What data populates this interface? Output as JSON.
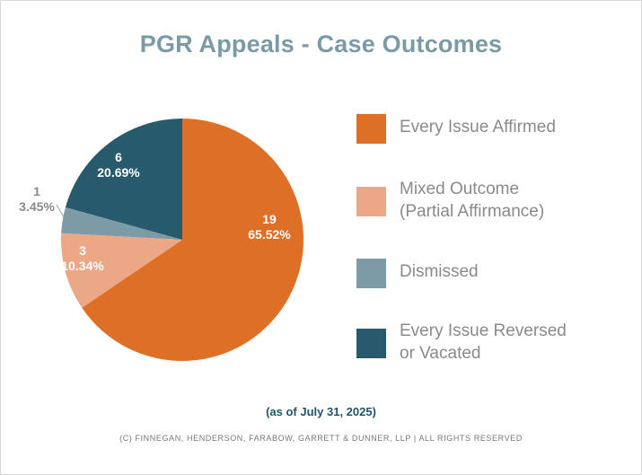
{
  "chart_data": {
    "type": "pie",
    "title": "PGR Appeals - Case Outcomes",
    "slices": [
      {
        "name": "Every Issue Affirmed",
        "value": 19,
        "percent": "65.52%",
        "color": "#dd6f27"
      },
      {
        "name": "Mixed Outcome\n(Partial Affirmance)",
        "value": 3,
        "percent": "10.34%",
        "color": "#eca886"
      },
      {
        "name": "Dismissed",
        "value": 1,
        "percent": "3.45%",
        "color": "#7c9ba6"
      },
      {
        "name": "Every Issue Reversed\nor Vacated",
        "value": 6,
        "percent": "20.69%",
        "color": "#265a6c"
      }
    ],
    "legend_position": "right"
  },
  "note": "(as of July 31, 2025)",
  "copyright": "(c) Finnegan, Henderson, Farabow, Garrett & Dunner, LLP | All rights reserved"
}
